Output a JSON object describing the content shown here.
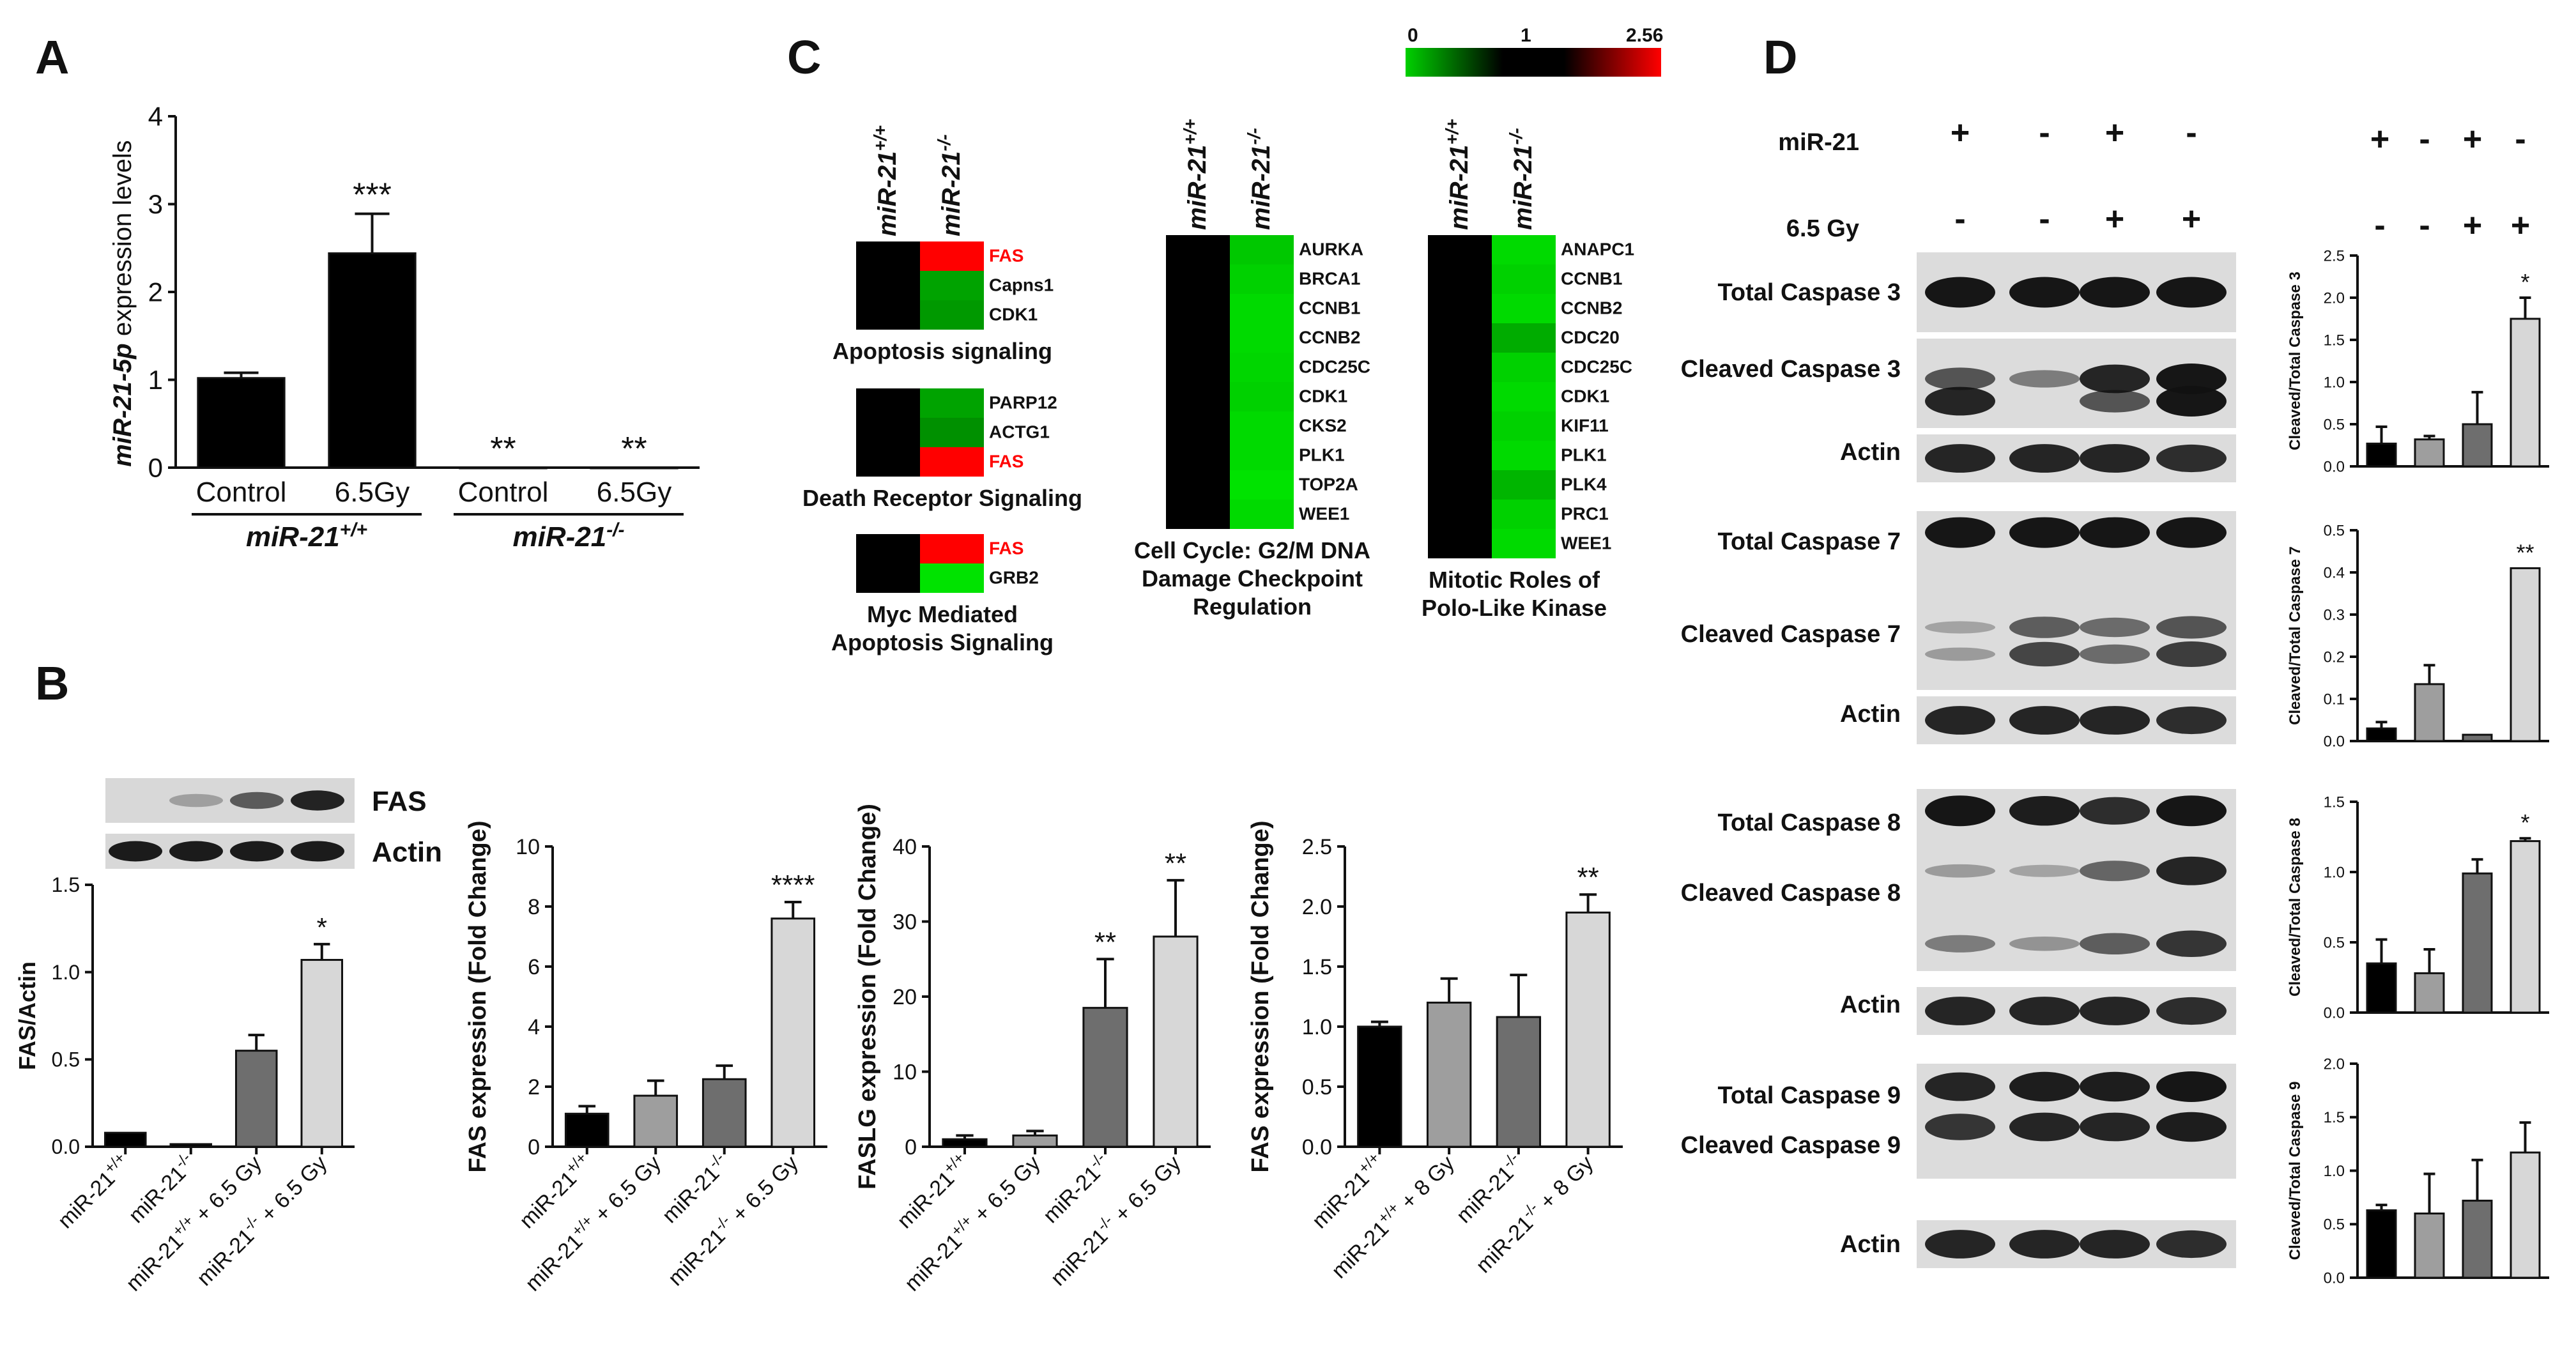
{
  "panels": {
    "A": "A",
    "B": "B",
    "C": "C",
    "D": "D"
  },
  "colors": {
    "black": "#000000",
    "dark_gray": "#6e6e6e",
    "mid_gray": "#9e9e9e",
    "light_gray": "#d7d7d7",
    "heat_low": "#00c800",
    "heat_mid": "#000000",
    "heat_high": "#ff0000"
  },
  "panelA": {
    "chart_data": {
      "type": "bar",
      "ylabel_prefix": "miR-21-5p",
      "ylabel_suffix": " expression levels",
      "ylim": [
        0,
        4
      ],
      "yticks": [
        "0",
        "1",
        "2",
        "3",
        "4"
      ],
      "categories": [
        "Control",
        "6.5Gy",
        "Control",
        "6.5Gy"
      ],
      "values": [
        1.02,
        2.44,
        0.0,
        0.0
      ],
      "errors": [
        0.06,
        0.45,
        0.0,
        0.0
      ],
      "annotations": [
        "",
        "***",
        "**",
        "**"
      ],
      "group_labels": [
        "miR-21",
        "miR-21"
      ],
      "group_sups": [
        "+/+",
        "-/-"
      ]
    }
  },
  "panelB": {
    "blot_labels": [
      "FAS",
      "Actin"
    ],
    "blot_intensity": [
      [
        0.0,
        0.05,
        0.55,
        0.95
      ],
      [
        1,
        1,
        1,
        1
      ]
    ],
    "chart_data": [
      {
        "type": "bar",
        "ylabel": "FAS/Actin",
        "ylim": [
          0,
          1.5
        ],
        "yticks": [
          "0.0",
          "0.5",
          "1.0",
          "1.5"
        ],
        "categories": [
          "miR-21+/+",
          "miR-21-/-",
          "miR-21+/+ + 6.5 Gy",
          "miR-21-/- + 6.5 Gy"
        ],
        "values": [
          0.08,
          0.015,
          0.55,
          1.07
        ],
        "errors": [
          0.0,
          0.0,
          0.09,
          0.09
        ],
        "annotations": [
          "",
          "",
          "",
          "*"
        ]
      },
      {
        "type": "bar",
        "ylabel": "FAS expression (Fold Change)",
        "ylim": [
          0,
          10
        ],
        "yticks": [
          "0",
          "2",
          "4",
          "6",
          "8",
          "10"
        ],
        "categories": [
          "miR-21+/+",
          "miR-21+/+ + 6.5 Gy",
          "miR-21-/-",
          "miR-21-/- + 6.5 Gy"
        ],
        "values": [
          1.1,
          1.7,
          2.25,
          7.6
        ],
        "errors": [
          0.25,
          0.5,
          0.45,
          0.55
        ],
        "annotations": [
          "",
          "",
          "",
          "****"
        ]
      },
      {
        "type": "bar",
        "ylabel": "FASLG expression (Fold Change)",
        "ylim": [
          0,
          40
        ],
        "yticks": [
          "0",
          "10",
          "20",
          "30",
          "40"
        ],
        "categories": [
          "miR-21+/+",
          "miR-21+/+ + 6.5 Gy",
          "miR-21-/-",
          "miR-21-/- + 6.5 Gy"
        ],
        "values": [
          1.0,
          1.5,
          18.5,
          28.0
        ],
        "errors": [
          0.5,
          0.6,
          6.5,
          7.5
        ],
        "annotations": [
          "",
          "",
          "**",
          "**"
        ]
      },
      {
        "type": "bar",
        "ylabel": "FAS expression (Fold Change)",
        "ylim": [
          0,
          2.5
        ],
        "yticks": [
          "0.0",
          "0.5",
          "1.0",
          "1.5",
          "2.0",
          "2.5"
        ],
        "categories": [
          "miR-21+/+",
          "miR-21+/+ + 8 Gy",
          "miR-21-/-",
          "miR-21-/- + 8 Gy"
        ],
        "values": [
          1.0,
          1.2,
          1.08,
          1.95
        ],
        "errors": [
          0.04,
          0.2,
          0.35,
          0.15
        ],
        "annotations": [
          "",
          "",
          "",
          "**"
        ]
      }
    ]
  },
  "panelC": {
    "colorbar": {
      "min": "0",
      "mid": "1",
      "max": "2.56"
    },
    "col_label_base": "miR-21",
    "col_sups": [
      "+/+",
      "-/-"
    ],
    "heatmaps": [
      {
        "title": [
          "Apoptosis signaling"
        ],
        "genes": [
          "FAS",
          "Capns1",
          "CDK1"
        ],
        "values": [
          2.56,
          0.5,
          0.55
        ],
        "highlight": [
          true,
          false,
          false
        ]
      },
      {
        "title": [
          "Death Receptor Signaling"
        ],
        "genes": [
          "PARP12",
          "ACTG1",
          "FAS"
        ],
        "values": [
          0.5,
          0.6,
          2.56
        ],
        "highlight": [
          false,
          false,
          true
        ]
      },
      {
        "title": [
          "Myc Mediated",
          "Apoptosis Signaling"
        ],
        "genes": [
          "FAS",
          "GRB2"
        ],
        "values": [
          2.56,
          0.15
        ],
        "highlight": [
          true,
          false
        ]
      },
      {
        "title": [
          "Cell Cycle: G2/M DNA",
          "Damage Checkpoint",
          "Regulation"
        ],
        "genes": [
          "AURKA",
          "BRCA1",
          "CCNB1",
          "CCNB2",
          "CDC25C",
          "CDK1",
          "CKS2",
          "PLK1",
          "TOP2A",
          "WEE1"
        ],
        "values": [
          0.3,
          0.25,
          0.2,
          0.2,
          0.22,
          0.25,
          0.2,
          0.2,
          0.15,
          0.2
        ],
        "highlight": [
          false,
          false,
          false,
          false,
          false,
          false,
          false,
          false,
          false,
          false
        ]
      },
      {
        "title": [
          "Mitotic Roles of",
          "Polo-Like Kinase"
        ],
        "genes": [
          "ANAPC1",
          "CCNB1",
          "CCNB2",
          "CDC20",
          "CDC25C",
          "CDK1",
          "KIF11",
          "PLK1",
          "PLK4",
          "PRC1",
          "WEE1"
        ],
        "values": [
          0.2,
          0.25,
          0.2,
          0.45,
          0.25,
          0.2,
          0.25,
          0.2,
          0.4,
          0.25,
          0.2
        ],
        "highlight": [
          false,
          false,
          false,
          false,
          false,
          false,
          false,
          false,
          false,
          false,
          false
        ]
      }
    ]
  },
  "panelD": {
    "header": {
      "mir21_label": "miR-21",
      "gy_label": "6.5 Gy",
      "mir21_signs": [
        "+",
        "-",
        "+",
        "-"
      ],
      "gy_signs": [
        "-",
        "-",
        "+",
        "+"
      ]
    },
    "blot_sets": [
      {
        "labels": [
          "Total Caspase 3",
          "Cleaved Caspase 3",
          "Actin"
        ]
      },
      {
        "labels": [
          "Total Caspase 7",
          "Cleaved Caspase 7",
          "Actin"
        ]
      },
      {
        "labels": [
          "Total Caspase 8",
          "Cleaved Caspase 8",
          "Actin"
        ]
      },
      {
        "labels": [
          "Total Caspase 9",
          "Cleaved Caspase 9",
          "Actin"
        ]
      }
    ],
    "chart_data": [
      {
        "type": "bar",
        "ylabel": "Cleaved/Total Caspase 3",
        "ylim": [
          0,
          2.5
        ],
        "yticks": [
          "0.0",
          "0.5",
          "1.0",
          "1.5",
          "2.0",
          "2.5"
        ],
        "categories": [
          "miR-21+/+",
          "miR-21-/-",
          "miR-21+/+ + 6.5 Gy",
          "miR-21-/- + 6.5 Gy"
        ],
        "values": [
          0.27,
          0.32,
          0.5,
          1.75
        ],
        "errors": [
          0.2,
          0.04,
          0.38,
          0.25
        ],
        "annotations": [
          "",
          "",
          "",
          "*"
        ]
      },
      {
        "type": "bar",
        "ylabel": "Cleaved/Total Caspase 7",
        "ylim": [
          0,
          0.5
        ],
        "yticks": [
          "0.0",
          "0.1",
          "0.2",
          "0.3",
          "0.4",
          "0.5"
        ],
        "categories": [
          "miR-21+/+",
          "miR-21-/-",
          "miR-21+/+ + 6.5 Gy",
          "miR-21-/- + 6.5 Gy"
        ],
        "values": [
          0.03,
          0.135,
          0.015,
          0.41
        ],
        "errors": [
          0.015,
          0.045,
          0.0,
          0.0
        ],
        "annotations": [
          "",
          "",
          "",
          "**"
        ]
      },
      {
        "type": "bar",
        "ylabel": "Cleaved/Total Caspase 8",
        "ylim": [
          0,
          1.5
        ],
        "yticks": [
          "0.0",
          "0.5",
          "1.0",
          "1.5"
        ],
        "categories": [
          "miR-21+/+",
          "miR-21-/-",
          "miR-21+/+ + 6.5 Gy",
          "miR-21-/- + 6.5 Gy"
        ],
        "values": [
          0.35,
          0.28,
          0.99,
          1.22
        ],
        "errors": [
          0.17,
          0.17,
          0.1,
          0.02
        ],
        "annotations": [
          "",
          "",
          "",
          "*"
        ]
      },
      {
        "type": "bar",
        "ylabel": "Cleaved/Total Caspase 9",
        "ylim": [
          0,
          2.0
        ],
        "yticks": [
          "0.0",
          "0.5",
          "1.0",
          "1.5",
          "2.0"
        ],
        "categories": [
          "miR-21+/+",
          "miR-21-/-",
          "miR-21+/+ + 6.5 Gy",
          "miR-21-/- + 6.5 Gy"
        ],
        "values": [
          0.63,
          0.6,
          0.72,
          1.17
        ],
        "errors": [
          0.05,
          0.37,
          0.38,
          0.28
        ],
        "annotations": [
          "",
          "",
          "",
          ""
        ]
      }
    ]
  }
}
